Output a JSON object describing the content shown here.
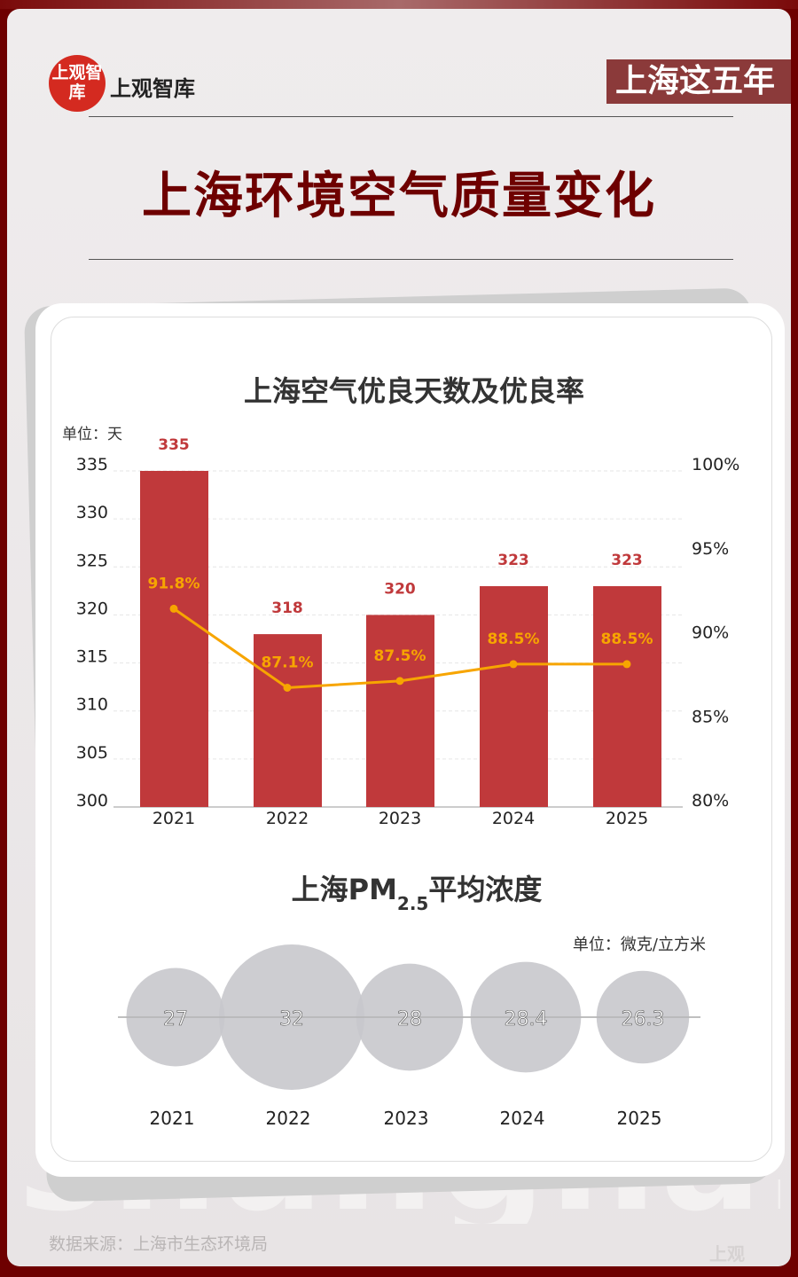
{
  "header": {
    "logo_badge": "上观智库",
    "logo_text": "上观智库",
    "series_tag": "上海这五年",
    "title": "上海环境空气质量变化"
  },
  "footer": {
    "source": "数据来源：上海市生态环境局",
    "watermark": "shanghai",
    "brand_mark": "上观"
  },
  "colors": {
    "bar": "#c0393b",
    "line": "#f7a500",
    "bubble": "#c8c8cc",
    "title": "#6e0000"
  },
  "chart_data": [
    {
      "type": "bar+line",
      "title": "上海空气优良天数及优良率",
      "unit_label": "单位：天",
      "categories": [
        "2021",
        "2022",
        "2023",
        "2024",
        "2025"
      ],
      "series": [
        {
          "type": "bar",
          "values": [
            335,
            318,
            320,
            323,
            323
          ],
          "labels": [
            "335",
            "318",
            "320",
            "323",
            "323"
          ]
        },
        {
          "type": "line",
          "axis": "right",
          "values": [
            91.8,
            87.1,
            87.5,
            88.5,
            88.5
          ],
          "labels": [
            "91.8%",
            "87.1%",
            "87.5%",
            "88.5%",
            "88.5%"
          ]
        }
      ],
      "ylim": [
        300,
        335
      ],
      "yticks": [
        "300",
        "305",
        "310",
        "315",
        "320",
        "325",
        "330",
        "335"
      ],
      "y2lim": [
        80,
        100
      ],
      "y2ticks": [
        "80%",
        "85%",
        "90%",
        "95%",
        "100%"
      ],
      "grid": true
    },
    {
      "type": "bubble",
      "title_prefix": "上海PM",
      "title_sub": "2.5",
      "title_suffix": "平均浓度",
      "unit_label": "单位：微克/立方米",
      "categories": [
        "2021",
        "2022",
        "2023",
        "2024",
        "2025"
      ],
      "values": [
        27,
        32,
        28,
        28.4,
        26.3
      ],
      "labels": [
        "27",
        "32",
        "28",
        "28.4",
        "26.3"
      ]
    }
  ]
}
